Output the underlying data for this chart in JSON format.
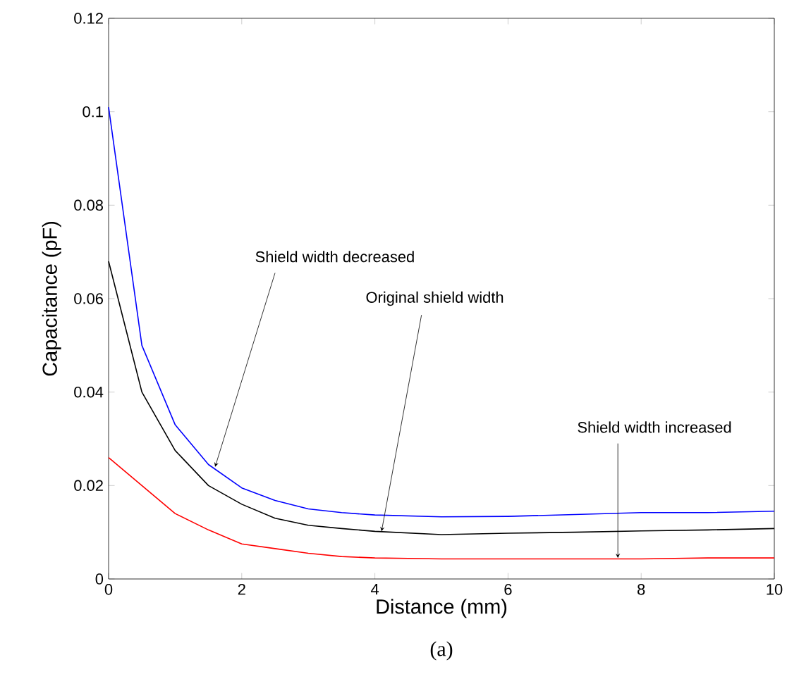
{
  "chart_data": {
    "type": "line",
    "xlabel": "Distance (mm)",
    "ylabel": "Capacitance (pF)",
    "x": [
      0,
      0.5,
      1,
      1.5,
      2,
      2.5,
      3,
      3.5,
      4,
      5,
      6,
      7,
      8,
      9,
      10
    ],
    "series": [
      {
        "color": "#0000ff",
        "values": [
          0.101,
          0.05,
          0.033,
          0.0245,
          0.0195,
          0.0168,
          0.015,
          0.0142,
          0.0137,
          0.0133,
          0.0134,
          0.0138,
          0.0142,
          0.0142,
          0.0145
        ]
      },
      {
        "color": "#000000",
        "values": [
          0.068,
          0.04,
          0.0275,
          0.02,
          0.016,
          0.013,
          0.0115,
          0.0108,
          0.0102,
          0.0095,
          0.0098,
          0.01,
          0.0103,
          0.0105,
          0.0108
        ]
      },
      {
        "color": "#ff0000",
        "values": [
          0.026,
          0.02,
          0.014,
          0.0105,
          0.0075,
          0.0065,
          0.0055,
          0.0048,
          0.0045,
          0.0043,
          0.0043,
          0.0043,
          0.0043,
          0.0045,
          0.0045
        ]
      }
    ],
    "xlim": [
      0,
      10
    ],
    "ylim": [
      0,
      0.12
    ],
    "xticks": [
      0,
      2,
      4,
      6,
      8,
      10
    ],
    "yticks": [
      0,
      0.02,
      0.04,
      0.06,
      0.08,
      0.1,
      0.12
    ],
    "annotations": [
      {
        "text": "Shield width decreased",
        "x": 1.6,
        "y": 0.024
      },
      {
        "text": "Original shield width",
        "x": 4.1,
        "y": 0.0102
      },
      {
        "text": "Shield width increased",
        "x": 7.65,
        "y": 0.0045
      },
      "(a)"
    ],
    "grid": false,
    "marker": "none",
    "line_style": "solid"
  }
}
